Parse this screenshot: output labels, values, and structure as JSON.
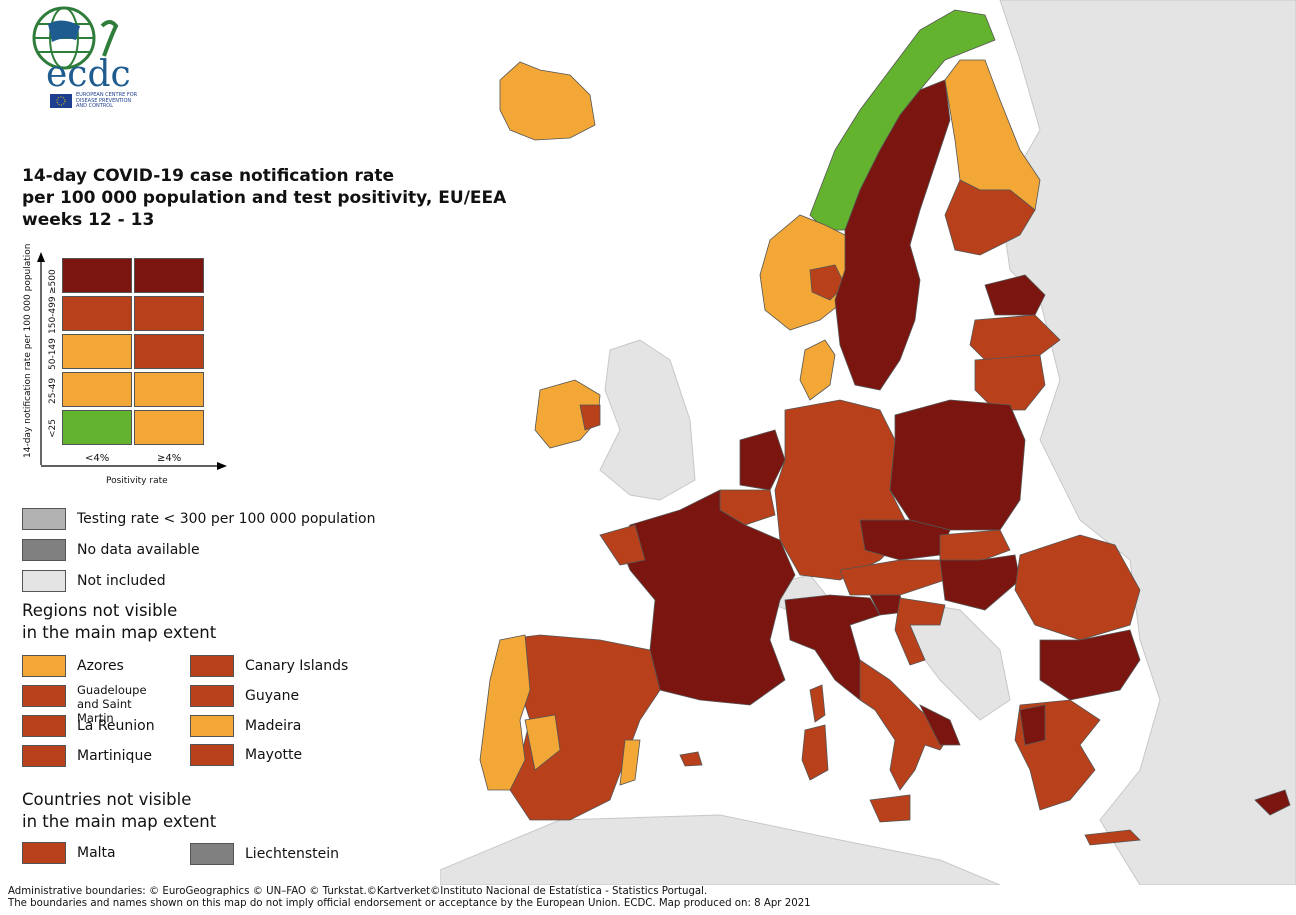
{
  "logo": {
    "wordmark": "ecdc",
    "org_line1": "EUROPEAN CENTRE FOR",
    "org_line2": "DISEASE PREVENTION",
    "org_line3": "AND CONTROL"
  },
  "title": {
    "line1": "14-day COVID-19 case notification rate",
    "line2": "per 100 000 population and test positivity, EU/EEA",
    "line3": "weeks 12 - 13"
  },
  "matrix": {
    "y_axis_label": "14-day notification rate per 100 000 population",
    "row_labels": [
      "≥500",
      "150-499",
      "50-149",
      "25-49",
      "<25"
    ],
    "col_labels": [
      "<4%",
      "≥4%"
    ],
    "x_axis_label": "Positivity rate",
    "colors": [
      [
        "#7a160f",
        "#7a160f"
      ],
      [
        "#b8401a",
        "#b8401a"
      ],
      [
        "#f2a737",
        "#b8401a"
      ],
      [
        "#f2a737",
        "#f2a737"
      ],
      [
        "#64b32e",
        "#f2a737"
      ]
    ]
  },
  "status_legend": [
    {
      "label": "Testing rate < 300 per 100 000 population",
      "color": "#b2b2b2"
    },
    {
      "label": "No data available",
      "color": "#808080"
    },
    {
      "label": "Not included",
      "color": "#e4e4e4"
    }
  ],
  "regions_heading": {
    "line1": "Regions not visible",
    "line2": "in the main map extent"
  },
  "regions": [
    {
      "label": "Azores",
      "color": "#f2a737"
    },
    {
      "label": "Canary Islands",
      "color": "#b8401a"
    },
    {
      "label_line1": "Guadeloupe",
      "label_line2": "and Saint Martin",
      "color": "#b8401a"
    },
    {
      "label": "Guyane",
      "color": "#b8401a"
    },
    {
      "label": "La Reunion",
      "color": "#b8401a"
    },
    {
      "label": "Madeira",
      "color": "#f2a737"
    },
    {
      "label": "Martinique",
      "color": "#b8401a"
    },
    {
      "label": "Mayotte",
      "color": "#b8401a"
    }
  ],
  "countries_heading": {
    "line1": "Countries not visible",
    "line2": "in the main map extent"
  },
  "countries": [
    {
      "label": "Malta",
      "color": "#b8401a"
    },
    {
      "label": "Liechtenstein",
      "color": "#808080"
    }
  ],
  "footer": {
    "line1": "Administrative boundaries: © EuroGeographics © UN–FAO © Turkstat.©Kartverket©Instituto Nacional de Estatística - Statistics Portugal.",
    "line2": "The boundaries and names shown on this map do not imply official endorsement or acceptance by the European Union. ECDC. Map produced on: 8 Apr 2021"
  },
  "map_colors": {
    "dark_red": "#7a160f",
    "red": "#b8401a",
    "orange": "#f2a737",
    "green": "#64b32e",
    "not_included": "#e4e4e4",
    "border": "#555555"
  }
}
